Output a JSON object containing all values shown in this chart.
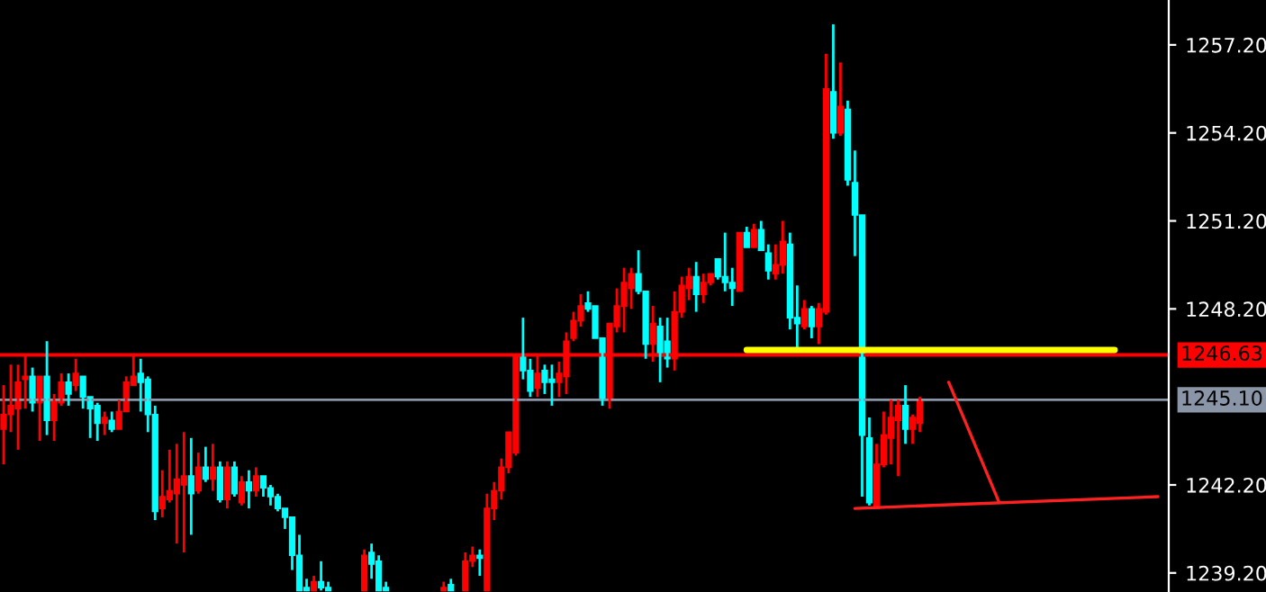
{
  "chart_data": {
    "type": "candlestick",
    "categories": [
      null,
      null,
      null,
      null,
      null,
      null,
      null,
      null,
      null,
      null,
      null,
      null,
      null,
      null,
      null,
      null,
      null,
      null,
      null,
      null,
      null,
      null,
      null,
      null,
      null,
      null,
      null,
      null,
      null,
      null,
      null,
      null,
      null,
      null,
      null,
      null,
      null,
      null,
      null,
      null,
      null,
      null,
      null,
      null,
      null,
      null,
      null,
      null,
      null,
      null,
      null,
      null,
      null,
      null,
      null,
      null,
      null,
      null,
      null,
      null,
      null,
      null,
      null,
      null,
      null,
      null,
      null,
      null,
      null,
      null,
      null,
      null,
      null,
      null,
      null,
      null,
      null,
      null,
      null,
      null,
      null,
      null,
      null,
      null,
      null,
      null,
      null,
      null,
      null,
      null,
      null,
      null,
      null,
      null,
      null,
      null,
      null,
      null,
      null,
      null,
      null,
      null,
      null,
      null,
      null,
      null,
      null,
      null,
      null,
      null,
      null,
      null,
      null,
      null,
      null,
      null,
      null,
      null,
      null,
      null,
      null,
      null,
      null,
      null,
      null,
      null,
      null,
      null,
      null,
      null,
      null,
      null,
      null,
      null,
      null,
      null,
      null,
      null,
      null,
      null,
      null,
      null,
      null,
      null,
      null,
      null,
      null,
      null,
      null,
      null,
      null,
      null,
      null,
      null,
      null,
      null,
      null,
      null,
      null,
      null,
      null,
      null
    ],
    "ohlc": [
      [
        1244.1,
        1245.6,
        1242.9,
        1244.6
      ],
      [
        1244.6,
        1246.3,
        1244.0,
        1244.9
      ],
      [
        1244.8,
        1246.3,
        1243.4,
        1245.7
      ],
      [
        1245.8,
        1246.6,
        1244.8,
        1245.9
      ],
      [
        1245.9,
        1246.2,
        1244.7,
        1245.0
      ],
      [
        1245.0,
        1245.9,
        1243.7,
        1245.9
      ],
      [
        1245.9,
        1247.1,
        1243.9,
        1244.4
      ],
      [
        1244.4,
        1245.3,
        1243.7,
        1245.1
      ],
      [
        1245.0,
        1246.0,
        1244.9,
        1245.7
      ],
      [
        1245.7,
        1246.0,
        1244.9,
        1245.3
      ],
      [
        1245.6,
        1246.5,
        1245.4,
        1246.0
      ],
      [
        1245.9,
        1245.9,
        1244.8,
        1245.2
      ],
      [
        1245.2,
        1245.2,
        1243.8,
        1244.8
      ],
      [
        1244.9,
        1245.0,
        1243.7,
        1244.3
      ],
      [
        1244.3,
        1244.7,
        1243.9,
        1244.5
      ],
      [
        1244.4,
        1244.7,
        1244.0,
        1244.1
      ],
      [
        1244.1,
        1245.1,
        1244.1,
        1244.7
      ],
      [
        1244.7,
        1245.9,
        1244.7,
        1245.7
      ],
      [
        1245.6,
        1246.6,
        1245.6,
        1245.9
      ],
      [
        1246.0,
        1246.5,
        1244.7,
        1245.7
      ],
      [
        1245.8,
        1245.9,
        1244.0,
        1244.6
      ],
      [
        1244.6,
        1244.9,
        1241.0,
        1241.3
      ],
      [
        1241.4,
        1242.7,
        1241.1,
        1241.8
      ],
      [
        1241.7,
        1243.4,
        1241.6,
        1242.0
      ],
      [
        1241.9,
        1243.6,
        1240.2,
        1242.4
      ],
      [
        1242.2,
        1244.0,
        1239.9,
        1242.5
      ],
      [
        1242.5,
        1243.8,
        1240.5,
        1241.9
      ],
      [
        1242.0,
        1243.3,
        1241.9,
        1242.8
      ],
      [
        1242.8,
        1243.5,
        1242.3,
        1242.4
      ],
      [
        1242.4,
        1243.6,
        1242.0,
        1242.8
      ],
      [
        1242.8,
        1243.0,
        1241.6,
        1241.7
      ],
      [
        1241.7,
        1243.0,
        1241.4,
        1242.8
      ],
      [
        1242.8,
        1243.0,
        1241.8,
        1241.9
      ],
      [
        1241.6,
        1242.5,
        1241.5,
        1242.3
      ],
      [
        1242.3,
        1242.7,
        1241.4,
        1242.0
      ],
      [
        1242.0,
        1242.8,
        1241.8,
        1242.5
      ],
      [
        1242.5,
        1242.5,
        1241.8,
        1242.1
      ],
      [
        1242.1,
        1242.2,
        1241.5,
        1241.8
      ],
      [
        1241.8,
        1241.9,
        1241.3,
        1241.4
      ],
      [
        1241.4,
        1241.4,
        1240.7,
        1241.1
      ],
      [
        1241.1,
        1241.1,
        1239.3,
        1239.8
      ],
      [
        1239.8,
        1240.5,
        1238.6,
        1238.6
      ],
      [
        1238.7,
        1239.0,
        1238.6,
        1238.6
      ],
      [
        1238.6,
        1239.1,
        1238.6,
        1238.9
      ],
      [
        1238.9,
        1239.6,
        1238.6,
        1238.7
      ],
      [
        1238.7,
        1238.9,
        1238.6,
        1238.6
      ],
      null,
      null,
      null,
      null,
      [
        1238.6,
        1240.0,
        1238.6,
        1239.8
      ],
      [
        1239.9,
        1240.2,
        1239.0,
        1239.5
      ],
      [
        1239.6,
        1239.8,
        1238.6,
        1238.6
      ],
      [
        1238.7,
        1238.9,
        1238.6,
        1238.6
      ],
      null,
      null,
      null,
      null,
      null,
      null,
      null,
      [
        1238.6,
        1238.9,
        1238.6,
        1238.7
      ],
      [
        1238.8,
        1239.0,
        1238.6,
        1238.6
      ],
      null,
      [
        1238.6,
        1239.9,
        1238.6,
        1239.6
      ],
      [
        1239.6,
        1240.1,
        1239.4,
        1239.8
      ],
      [
        1239.8,
        1240.0,
        1239.1,
        1239.7
      ],
      [
        1238.6,
        1241.9,
        1238.6,
        1241.4
      ],
      [
        1241.4,
        1242.3,
        1241.0,
        1242.0
      ],
      [
        1242.0,
        1243.1,
        1241.7,
        1242.8
      ],
      [
        1242.8,
        1244.0,
        1242.6,
        1244.0
      ],
      [
        1243.3,
        1246.6,
        1243.2,
        1246.6
      ],
      [
        1246.6,
        1247.9,
        1245.8,
        1246.1
      ],
      [
        1246.1,
        1246.5,
        1245.2,
        1245.4
      ],
      [
        1245.5,
        1246.6,
        1245.2,
        1246.0
      ],
      [
        1246.1,
        1246.3,
        1245.3,
        1245.7
      ],
      [
        1245.8,
        1246.3,
        1244.9,
        1245.7
      ],
      [
        1245.7,
        1246.4,
        1245.2,
        1246.0
      ],
      [
        1245.9,
        1247.4,
        1245.3,
        1247.1
      ],
      [
        1247.2,
        1248.1,
        1247.1,
        1247.8
      ],
      [
        1247.8,
        1248.7,
        1247.6,
        1248.3
      ],
      [
        1248.4,
        1248.8,
        1248.1,
        1248.2
      ],
      [
        1248.3,
        1248.3,
        1247.2,
        1247.2
      ],
      [
        1247.2,
        1247.2,
        1244.9,
        1245.1
      ],
      [
        1245.1,
        1247.7,
        1244.8,
        1247.7
      ],
      [
        1247.6,
        1248.9,
        1247.4,
        1248.3
      ],
      [
        1248.3,
        1249.6,
        1247.4,
        1249.1
      ],
      [
        1248.9,
        1249.6,
        1248.2,
        1249.4
      ],
      [
        1249.4,
        1250.2,
        1248.7,
        1248.8
      ],
      [
        1248.8,
        1248.8,
        1246.5,
        1247.0
      ],
      [
        1247.0,
        1248.3,
        1246.4,
        1247.7
      ],
      [
        1247.6,
        1247.9,
        1245.7,
        1246.6
      ],
      [
        1247.1,
        1247.9,
        1246.2,
        1246.5
      ],
      [
        1246.5,
        1248.8,
        1246.1,
        1248.1
      ],
      [
        1248.1,
        1249.3,
        1247.9,
        1249.0
      ],
      [
        1248.9,
        1249.6,
        1248.5,
        1249.3
      ],
      [
        1249.3,
        1249.8,
        1248.1,
        1248.7
      ],
      [
        1248.7,
        1249.4,
        1248.4,
        1249.1
      ],
      [
        1249.1,
        1249.4,
        1249.0,
        1249.4
      ],
      [
        1249.9,
        1249.9,
        1249.2,
        1249.3
      ],
      [
        1249.3,
        1250.8,
        1248.8,
        1249.1
      ],
      [
        1249.1,
        1249.6,
        1248.3,
        1248.9
      ],
      [
        1248.8,
        1250.8,
        1248.8,
        1250.8
      ],
      [
        1250.8,
        1251.0,
        1250.3,
        1250.3
      ],
      [
        1250.3,
        1251.1,
        1250.3,
        1250.9
      ],
      [
        1250.9,
        1251.2,
        1250.2,
        1250.2
      ],
      [
        1250.1,
        1250.4,
        1249.2,
        1249.5
      ],
      [
        1249.4,
        1250.4,
        1249.2,
        1249.7
      ],
      [
        1249.7,
        1251.2,
        1249.4,
        1250.5
      ],
      [
        1250.4,
        1250.8,
        1247.5,
        1247.9
      ],
      [
        1247.9,
        1249.0,
        1246.8,
        1247.7
      ],
      [
        1247.6,
        1248.5,
        1247.5,
        1248.2
      ],
      [
        1248.2,
        1248.3,
        1247.2,
        1247.6
      ],
      [
        1247.6,
        1248.4,
        1247.0,
        1248.2
      ],
      [
        1248.1,
        1256.9,
        1248.0,
        1255.7
      ],
      [
        1255.6,
        1257.9,
        1254.0,
        1254.2
      ],
      [
        1254.2,
        1256.6,
        1254.1,
        1255.1
      ],
      [
        1255.0,
        1255.3,
        1252.4,
        1252.6
      ],
      [
        1252.5,
        1253.6,
        1250.0,
        1251.4
      ],
      [
        1251.4,
        1251.4,
        1241.8,
        1243.9
      ],
      [
        1243.8,
        1244.5,
        1241.5,
        1241.6
      ],
      [
        1241.4,
        1243.6,
        1241.4,
        1242.9
      ],
      [
        1242.9,
        1244.7,
        1242.8,
        1243.9
      ],
      [
        1243.8,
        1245.1,
        1242.9,
        1244.5
      ],
      [
        1244.4,
        1245.1,
        1242.5,
        1244.9
      ],
      [
        1244.9,
        1245.6,
        1243.6,
        1244.1
      ],
      [
        1244.1,
        1244.6,
        1243.6,
        1244.5
      ],
      [
        1244.3,
        1245.2,
        1244.0,
        1245.1
      ],
      null,
      null,
      null,
      null,
      null,
      null,
      null,
      null,
      null,
      null,
      null,
      null,
      null,
      null,
      null,
      null,
      null,
      null,
      null,
      null,
      null,
      null,
      null,
      null,
      null,
      null,
      null,
      null,
      null,
      null,
      null,
      null,
      null,
      null
    ],
    "colors": [
      "#ff0000",
      "#ff0000",
      "#ff0000",
      "#ff0000",
      "#00ffff",
      "#ff0000",
      "#00ffff",
      "#ff0000",
      "#ff0000",
      "#00ffff",
      "#ff0000",
      "#00ffff",
      "#00ffff",
      "#00ffff",
      "#ff0000",
      "#00ffff",
      "#ff0000",
      "#ff0000",
      "#ff0000",
      "#00ffff",
      "#00ffff",
      "#00ffff",
      "#ff0000",
      "#ff0000",
      "#ff0000",
      "#ff0000",
      "#00ffff",
      "#ff0000",
      "#00ffff",
      "#ff0000",
      "#00ffff",
      "#ff0000",
      "#00ffff",
      "#ff0000",
      "#00ffff",
      "#ff0000",
      "#00ffff",
      "#00ffff",
      "#00ffff",
      "#00ffff",
      "#00ffff",
      "#00ffff",
      "#00ffff",
      "#ff0000",
      "#00ffff",
      "#00ffff",
      null,
      null,
      null,
      null,
      "#ff0000",
      "#00ffff",
      "#00ffff",
      "#00ffff",
      null,
      null,
      null,
      null,
      null,
      null,
      null,
      "#ff0000",
      "#00ffff",
      null,
      "#ff0000",
      "#ff0000",
      "#00ffff",
      "#ff0000",
      "#ff0000",
      "#ff0000",
      "#ff0000",
      "#ff0000",
      "#00ffff",
      "#00ffff",
      "#ff0000",
      "#00ffff",
      "#00ffff",
      "#ff0000",
      "#ff0000",
      "#ff0000",
      "#ff0000",
      "#00ffff",
      "#00ffff",
      "#00ffff",
      "#ff0000",
      "#ff0000",
      "#ff0000",
      "#ff0000",
      "#00ffff",
      "#00ffff",
      "#ff0000",
      "#00ffff",
      "#00ffff",
      "#ff0000",
      "#ff0000",
      "#ff0000",
      "#00ffff",
      "#ff0000",
      "#ff0000",
      "#00ffff",
      "#00ffff",
      "#00ffff",
      "#ff0000",
      "#00ffff",
      "#ff0000",
      "#00ffff",
      "#00ffff",
      "#ff0000",
      "#ff0000",
      "#00ffff",
      "#00ffff",
      "#ff0000",
      "#00ffff",
      "#ff0000",
      "#ff0000",
      "#00ffff",
      "#ff0000",
      "#00ffff",
      "#00ffff",
      "#00ffff",
      "#00ffff",
      "#ff0000",
      "#ff0000",
      "#ff0000",
      "#ff0000",
      "#00ffff",
      "#ff0000",
      "#ff0000",
      null,
      null,
      null,
      null,
      null,
      null,
      null,
      null,
      null,
      null,
      null,
      null,
      null,
      null,
      null,
      null,
      null,
      null,
      null,
      null,
      null,
      null,
      null,
      null,
      null,
      null,
      null,
      null,
      null,
      null,
      null,
      null,
      null,
      null
    ],
    "series": [
      {
        "type": "line",
        "color": "#ffff00",
        "values": [
          null,
          null,
          null,
          null,
          null,
          null,
          null,
          null,
          null,
          null,
          null,
          null,
          null,
          null,
          null,
          null,
          null,
          null,
          null,
          null,
          null,
          null,
          null,
          null,
          null,
          null,
          null,
          null,
          null,
          null,
          null,
          null,
          null,
          null,
          null,
          null,
          null,
          null,
          null,
          null,
          null,
          null,
          null,
          null,
          null,
          null,
          null,
          null,
          null,
          null,
          null,
          null,
          null,
          null,
          null,
          null,
          null,
          null,
          null,
          null,
          null,
          null,
          null,
          null,
          null,
          null,
          null,
          null,
          null,
          null,
          null,
          null,
          null,
          null,
          null,
          null,
          null,
          null,
          null,
          null,
          null,
          null,
          null,
          null,
          null,
          null,
          null,
          null,
          null,
          null,
          null,
          null,
          null,
          null,
          null,
          null,
          null,
          null,
          null,
          null,
          null,
          null,
          null,
          1246.8,
          null,
          null,
          null,
          null,
          null,
          null,
          null,
          null,
          null,
          null,
          null,
          null,
          null,
          null,
          null,
          null,
          null,
          null,
          null,
          null,
          null,
          null,
          null,
          null,
          null,
          null,
          null,
          null,
          null,
          null,
          null,
          null,
          null,
          null,
          null,
          null,
          null,
          null,
          null,
          null,
          null,
          null,
          null,
          null,
          null,
          null,
          null,
          null,
          null,
          null,
          1246.8,
          null,
          null,
          null,
          null,
          null,
          null,
          null
        ]
      },
      {
        "type": "line",
        "color": "#ff2020",
        "values": [
          null,
          null,
          null,
          null,
          null,
          null,
          null,
          null,
          null,
          null,
          null,
          null,
          null,
          null,
          null,
          null,
          null,
          null,
          null,
          null,
          null,
          null,
          null,
          null,
          null,
          null,
          null,
          null,
          null,
          null,
          null,
          null,
          null,
          null,
          null,
          null,
          null,
          null,
          null,
          null,
          null,
          null,
          null,
          null,
          null,
          null,
          null,
          null,
          null,
          null,
          null,
          null,
          null,
          null,
          null,
          null,
          null,
          null,
          null,
          null,
          null,
          null,
          null,
          null,
          null,
          null,
          null,
          null,
          null,
          null,
          null,
          null,
          null,
          null,
          null,
          null,
          null,
          null,
          null,
          null,
          null,
          null,
          null,
          null,
          null,
          null,
          null,
          null,
          null,
          null,
          null,
          null,
          null,
          null,
          null,
          null,
          null,
          null,
          null,
          null,
          null,
          null,
          null,
          null,
          null,
          null,
          null,
          null,
          null,
          null,
          null,
          null,
          null,
          null,
          null,
          null,
          null,
          null,
          null,
          null,
          null,
          null,
          null,
          null,
          null,
          null,
          null,
          null,
          null,
          null,
          null,
          1245.7,
          null,
          null,
          null,
          null,
          null,
          null,
          1241.6,
          null,
          null,
          null,
          null,
          null,
          null,
          null,
          null,
          null,
          null,
          null,
          null,
          null,
          null,
          null,
          null,
          null,
          null,
          null,
          null,
          null,
          null,
          null
        ]
      },
      {
        "type": "line",
        "color": "#ff2020",
        "values": [
          null,
          null,
          null,
          null,
          null,
          null,
          null,
          null,
          null,
          null,
          null,
          null,
          null,
          null,
          null,
          null,
          null,
          null,
          null,
          null,
          null,
          null,
          null,
          null,
          null,
          null,
          null,
          null,
          null,
          null,
          null,
          null,
          null,
          null,
          null,
          null,
          null,
          null,
          null,
          null,
          null,
          null,
          null,
          null,
          null,
          null,
          null,
          null,
          null,
          null,
          null,
          null,
          null,
          null,
          null,
          null,
          null,
          null,
          null,
          null,
          null,
          null,
          null,
          null,
          null,
          null,
          null,
          null,
          null,
          null,
          null,
          null,
          null,
          null,
          null,
          null,
          null,
          null,
          null,
          null,
          null,
          null,
          null,
          null,
          null,
          null,
          null,
          null,
          null,
          null,
          null,
          null,
          null,
          null,
          null,
          null,
          null,
          null,
          null,
          null,
          null,
          null,
          null,
          null,
          null,
          null,
          null,
          null,
          null,
          null,
          null,
          null,
          null,
          null,
          null,
          null,
          null,
          null,
          1241.4,
          null,
          null,
          null,
          null,
          null,
          null,
          null,
          null,
          null,
          null,
          null,
          null,
          null,
          null,
          null,
          null,
          null,
          null,
          null,
          null,
          null,
          null,
          null,
          null,
          null,
          null,
          null,
          null,
          null,
          null,
          null,
          null,
          null,
          null,
          null,
          null,
          null,
          null,
          null,
          null,
          null,
          1241.8,
          null
        ]
      }
    ],
    "ylim": [
      1238.55,
      1258.73
    ],
    "yticks": [
      {
        "value": 1257.2,
        "label": "1257.20"
      },
      {
        "value": 1254.2,
        "label": "1254.20"
      },
      {
        "value": 1251.2,
        "label": "1251.20"
      },
      {
        "value": 1248.2,
        "label": "1248.20"
      },
      {
        "value": 1242.2,
        "label": "1242.20"
      },
      {
        "value": 1239.2,
        "label": "1239.20"
      }
    ],
    "ref_lines": [
      {
        "axis": "y",
        "value": 1246.63,
        "label": "1246.63",
        "color": "#ff0000"
      },
      {
        "axis": "y",
        "value": 1245.1,
        "label": "1245.10",
        "color": "#8a96a8"
      }
    ],
    "tick_labels": "y"
  }
}
